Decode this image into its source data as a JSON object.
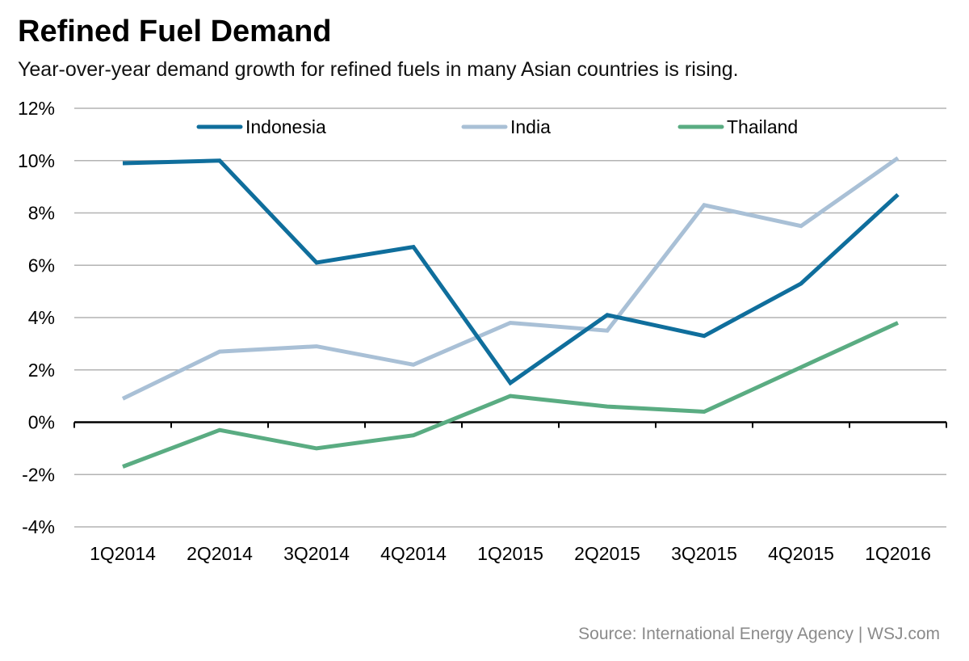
{
  "header": {
    "title": "Refined Fuel Demand",
    "subtitle": "Year-over-year demand growth for refined fuels in many Asian countries is rising."
  },
  "footer": {
    "source": "Source: International Energy Agency  |  WSJ.com"
  },
  "chart_data": {
    "type": "line",
    "title": "Refined Fuel Demand",
    "xlabel": "",
    "ylabel": "",
    "categories": [
      "1Q2014",
      "2Q2014",
      "3Q2014",
      "4Q2014",
      "1Q2015",
      "2Q2015",
      "3Q2015",
      "4Q2015",
      "1Q2016"
    ],
    "ylim": [
      -4,
      12
    ],
    "yticks": [
      -4,
      -2,
      0,
      2,
      4,
      6,
      8,
      10,
      12
    ],
    "ytick_labels": [
      "-4%",
      "-2%",
      "0%",
      "2%",
      "4%",
      "6%",
      "8%",
      "10%",
      "12%"
    ],
    "grid": true,
    "legend": "top",
    "series": [
      {
        "name": "Indonesia",
        "color": "#0f6e9c",
        "values": [
          9.9,
          10.0,
          6.1,
          6.7,
          1.5,
          4.1,
          3.3,
          5.3,
          8.7
        ]
      },
      {
        "name": "India",
        "color": "#a9c0d6",
        "values": [
          0.9,
          2.7,
          2.9,
          2.2,
          3.8,
          3.5,
          8.3,
          7.5,
          10.1
        ]
      },
      {
        "name": "Thailand",
        "color": "#5aac82",
        "values": [
          -1.7,
          -0.3,
          -1.0,
          -0.5,
          1.0,
          0.6,
          0.4,
          2.1,
          3.8
        ]
      }
    ]
  }
}
